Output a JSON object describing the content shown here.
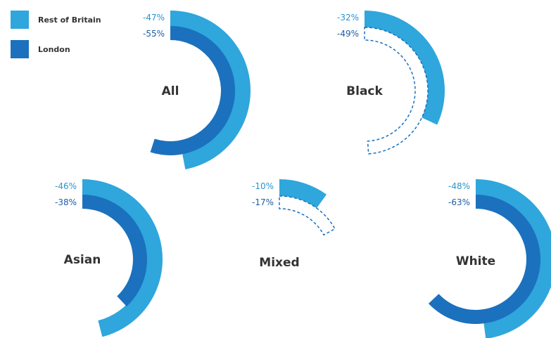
{
  "colors": {
    "rest_of_britain": "#2fa6dc",
    "london": "#1b71bd",
    "label_rest": "#2a94d0",
    "label_london": "#1b5ea8",
    "category_text": "#333333"
  },
  "legend": {
    "rest_of_britain": "Rest of Britain",
    "london": "London"
  },
  "chart_data": {
    "type": "radial-bar",
    "series": [
      {
        "name": "Rest of Britain",
        "key": "rest_of_britain"
      },
      {
        "name": "London",
        "key": "london"
      }
    ],
    "categories": [
      {
        "name": "All",
        "rest_of_britain": -47,
        "london": -55,
        "rest_label": "-47%",
        "london_label": "-55%"
      },
      {
        "name": "Black",
        "rest_of_britain": -32,
        "london": -49,
        "rest_label": "-32%",
        "london_label": "-49%"
      },
      {
        "name": "Asian",
        "rest_of_britain": -46,
        "london": -38,
        "rest_label": "-46%",
        "london_label": "-38%"
      },
      {
        "name": "Mixed",
        "rest_of_britain": -10,
        "london": -17,
        "rest_label": "-10%",
        "london_label": "-17%"
      },
      {
        "name": "White",
        "rest_of_britain": -48,
        "london": -63,
        "rest_label": "-48%",
        "london_label": "-63%"
      }
    ],
    "value_scale": "percent of full circle",
    "dashed_outline_series_for": [
      "Black",
      "Mixed"
    ]
  }
}
